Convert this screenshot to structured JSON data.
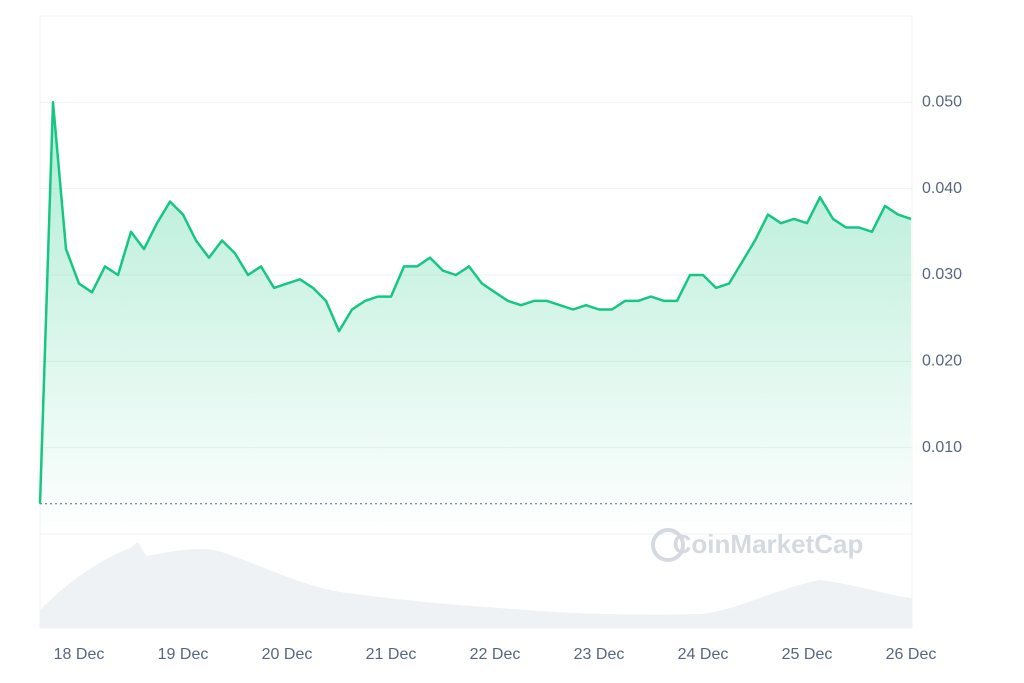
{
  "chart_data": {
    "type": "line",
    "watermark": "CoinMarketCap",
    "categories": [
      null,
      null,
      null,
      "18 Dec",
      null,
      null,
      null,
      null,
      null,
      null,
      null,
      "19 Dec",
      null,
      null,
      null,
      null,
      null,
      null,
      null,
      "20 Dec",
      null,
      null,
      null,
      null,
      null,
      null,
      null,
      "21 Dec",
      null,
      null,
      null,
      null,
      null,
      null,
      null,
      "22 Dec",
      null,
      null,
      null,
      null,
      null,
      null,
      null,
      "23 Dec",
      null,
      null,
      null,
      null,
      null,
      null,
      null,
      "24 Dec",
      null,
      null,
      null,
      null,
      null,
      null,
      null,
      "25 Dec",
      null,
      null,
      null,
      null,
      null,
      null,
      null,
      "26 Dec"
    ],
    "series": [
      {
        "color": "#16c784",
        "values": [
          0.0035,
          0.05,
          0.033,
          0.029,
          0.028,
          0.031,
          0.03,
          0.035,
          0.033,
          0.036,
          0.0385,
          0.037,
          0.034,
          0.032,
          0.034,
          0.0325,
          0.03,
          0.031,
          0.0285,
          0.029,
          0.0295,
          0.0285,
          0.027,
          0.0235,
          0.026,
          0.027,
          0.0275,
          0.0275,
          0.031,
          0.031,
          0.032,
          0.0305,
          0.03,
          0.031,
          0.029,
          0.028,
          0.027,
          0.0265,
          0.027,
          0.027,
          0.0265,
          0.026,
          0.0265,
          0.026,
          0.026,
          0.027,
          0.027,
          0.0275,
          0.027,
          0.027,
          0.03,
          0.03,
          0.0285,
          0.029,
          0.0315,
          0.034,
          0.037,
          0.036,
          0.0365,
          0.036,
          0.039,
          0.0365,
          0.0355,
          0.0355,
          0.035,
          0.038,
          0.037,
          0.0365
        ]
      }
    ],
    "ylim": [
      0,
      0.06
    ],
    "yticks": [
      {
        "value": 0.01,
        "label": "0.010"
      },
      {
        "value": 0.02,
        "label": "0.020"
      },
      {
        "value": 0.03,
        "label": "0.030"
      },
      {
        "value": 0.04,
        "label": "0.040"
      },
      {
        "value": 0.05,
        "label": "0.050"
      }
    ],
    "grid": true
  }
}
